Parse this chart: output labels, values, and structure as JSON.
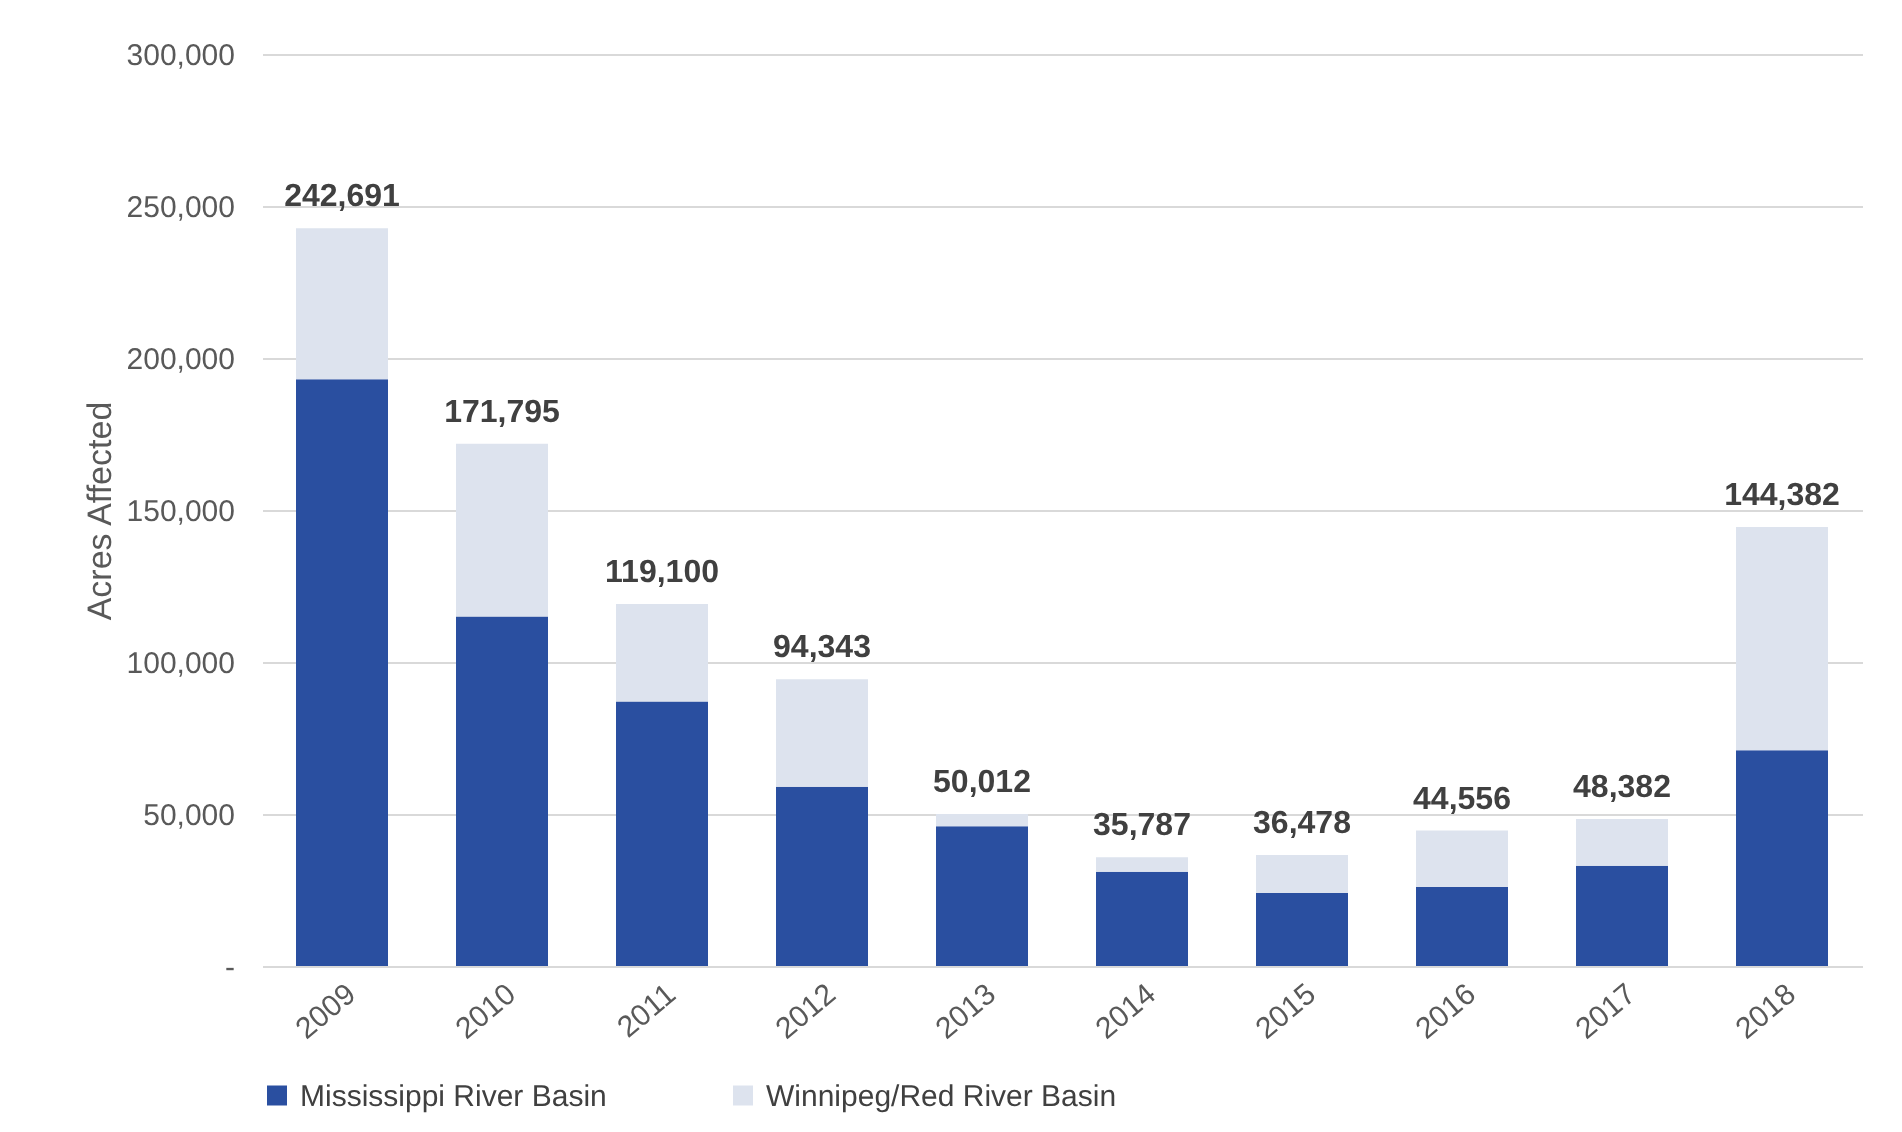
{
  "chart_data": {
    "type": "bar",
    "stacked": true,
    "ylabel": "Acres Affected",
    "categories": [
      "2009",
      "2010",
      "2011",
      "2012",
      "2013",
      "2014",
      "2015",
      "2016",
      "2017",
      "2018"
    ],
    "series": [
      {
        "name": "Mississippi River Basin",
        "color": "#2a4fa0",
        "values": [
          193000,
          115000,
          87000,
          59000,
          46000,
          31000,
          24000,
          26000,
          33000,
          71000
        ]
      },
      {
        "name": "Winnipeg/Red River Basin",
        "color": "#dde3ee",
        "values": [
          49691,
          56795,
          32100,
          35343,
          4012,
          4787,
          12478,
          18556,
          15382,
          73382
        ]
      }
    ],
    "totals": [
      "242,691",
      "171,795",
      "119,100",
      "94,343",
      "50,012",
      "35,787",
      "36,478",
      "44,556",
      "48,382",
      "144,382"
    ],
    "ylim": [
      0,
      300000
    ],
    "yticks": [
      {
        "value": 0,
        "label": "-"
      },
      {
        "value": 50000,
        "label": "50,000"
      },
      {
        "value": 100000,
        "label": "100,000"
      },
      {
        "value": 150000,
        "label": "150,000"
      },
      {
        "value": 200000,
        "label": "200,000"
      },
      {
        "value": 250000,
        "label": "250,000"
      },
      {
        "value": 300000,
        "label": "300,000"
      }
    ],
    "grid": "y",
    "legend": "bottom"
  }
}
